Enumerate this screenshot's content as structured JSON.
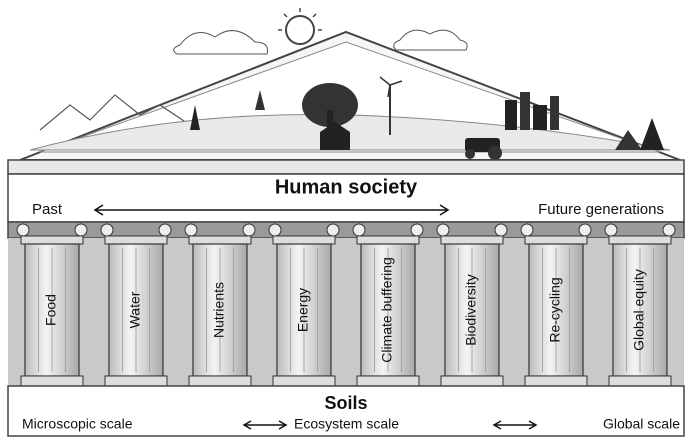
{
  "header": {
    "title": "Human society",
    "timeline": [
      "Past",
      "Future generations"
    ]
  },
  "pillars": [
    "Food",
    "Water",
    "Nutrients",
    "Energy",
    "Climate  buffering",
    "Biodiversity",
    "Re-cycling",
    "Global equity"
  ],
  "base": {
    "title": "Soils",
    "scales": [
      "Microscopic scale",
      "Ecosystem scale",
      "Global scale"
    ]
  }
}
